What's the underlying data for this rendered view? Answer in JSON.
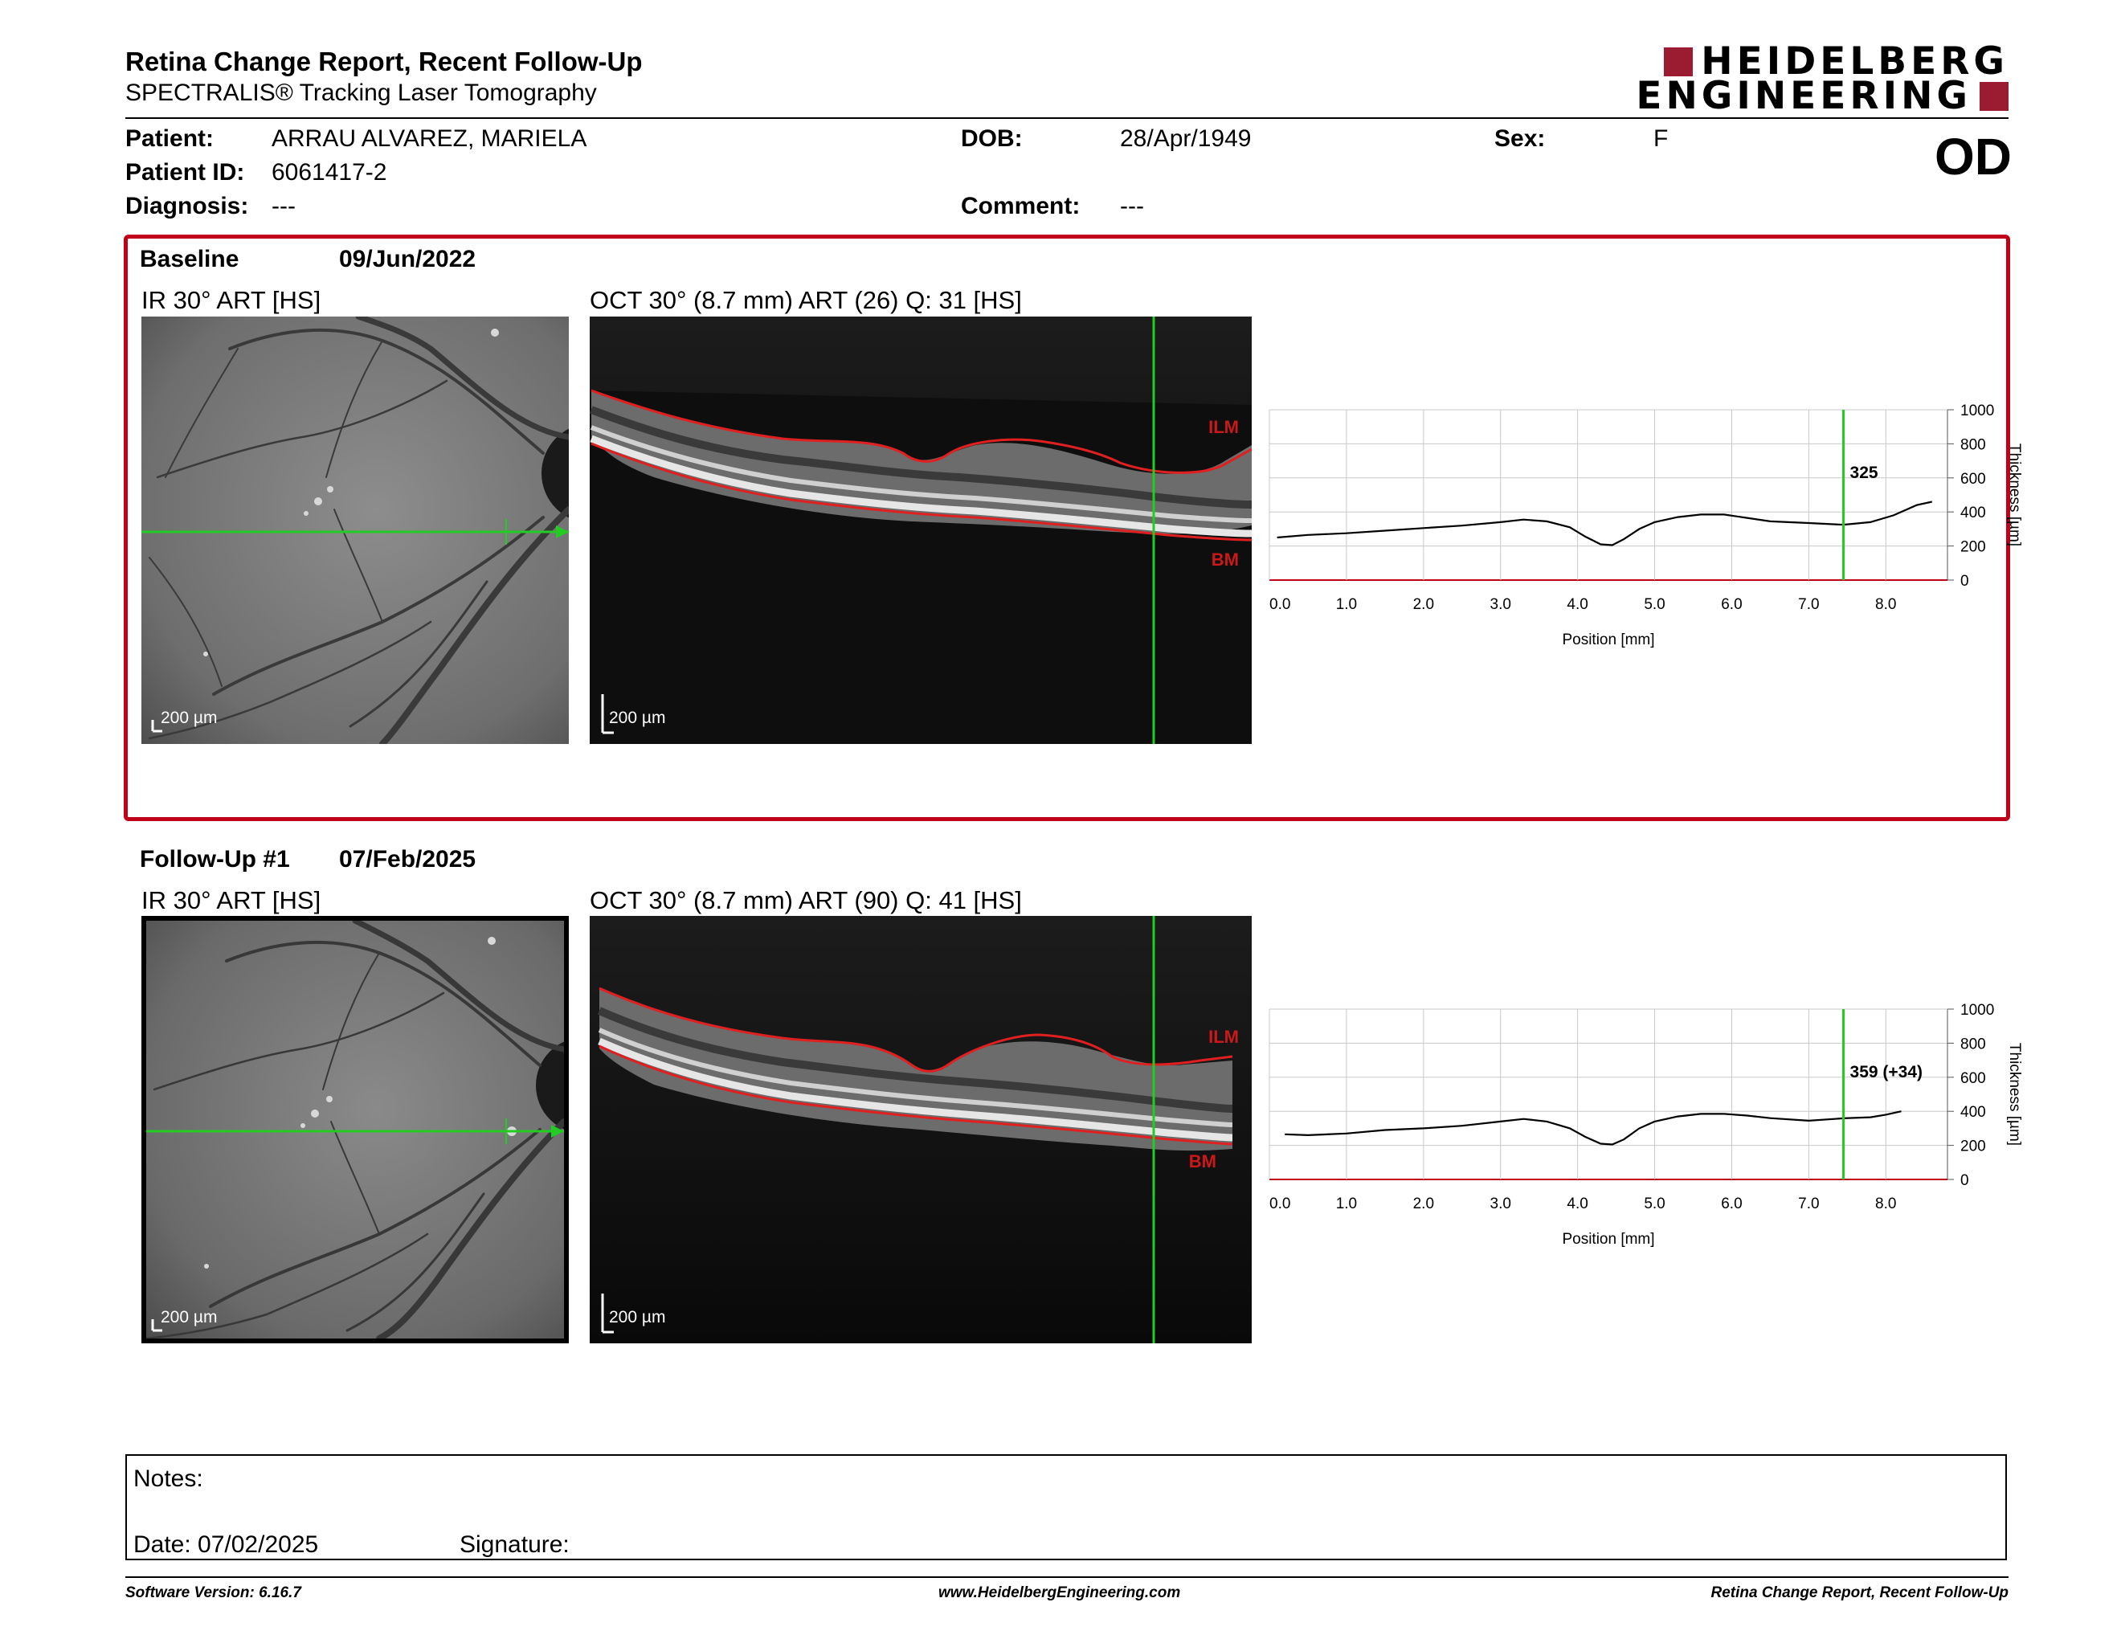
{
  "header": {
    "title": "Retina Change Report, Recent Follow-Up",
    "subtitle": "SPECTRALIS® Tracking Laser Tomography",
    "logo_line1": "HEIDELBERG",
    "logo_line2": "ENGINEERING",
    "eye": "OD"
  },
  "patient": {
    "patient_label": "Patient:",
    "patient_value": "ARRAU ALVAREZ, MARIELA",
    "dob_label": "DOB:",
    "dob_value": "28/Apr/1949",
    "sex_label": "Sex:",
    "sex_value": "F",
    "id_label": "Patient ID:",
    "id_value": "6061417-2",
    "diagnosis_label": "Diagnosis:",
    "diagnosis_value": "---",
    "comment_label": "Comment:",
    "comment_value": "---"
  },
  "sections": [
    {
      "label": "Baseline",
      "date": "09/Jun/2022",
      "ir_title": "IR 30° ART [HS]",
      "oct_title": "OCT 30° (8.7 mm) ART (26) Q: 31 [HS]",
      "ir_scale": "200 µm",
      "oct_scale": "200 µm",
      "ilm_label": "ILM",
      "bm_label": "BM",
      "readout": "325"
    },
    {
      "label": "Follow-Up #1",
      "date": "07/Feb/2025",
      "ir_title": "IR 30° ART [HS]",
      "oct_title": "OCT 30° (8.7 mm) ART (90) Q: 41 [HS]",
      "ir_scale": "200 µm",
      "oct_scale": "200 µm",
      "ilm_label": "ILM",
      "bm_label": "BM",
      "readout": "359 (+34)"
    }
  ],
  "chart_data": [
    {
      "type": "line",
      "xlabel": "Position [mm]",
      "ylabel": "Thickness [µm]",
      "xlim": [
        0,
        8.8
      ],
      "ylim": [
        0,
        1000
      ],
      "x_ticks": [
        "0.0",
        "1.0",
        "2.0",
        "3.0",
        "4.0",
        "5.0",
        "6.0",
        "7.0",
        "8.0"
      ],
      "y_ticks": [
        "0",
        "200",
        "400",
        "600",
        "800",
        "1000"
      ],
      "grid": true,
      "cursor_x": 7.45,
      "cursor_label": "325",
      "series": [
        {
          "x": [
            0.1,
            0.5,
            1.0,
            1.5,
            2.0,
            2.5,
            3.0,
            3.3,
            3.6,
            3.9,
            4.1,
            4.3,
            4.45,
            4.6,
            4.8,
            5.0,
            5.3,
            5.6,
            5.9,
            6.2,
            6.5,
            7.0,
            7.45,
            7.8,
            8.1,
            8.4,
            8.6
          ],
          "values": [
            250,
            265,
            275,
            290,
            305,
            320,
            340,
            355,
            345,
            310,
            255,
            210,
            205,
            240,
            300,
            340,
            370,
            385,
            385,
            365,
            345,
            335,
            325,
            340,
            380,
            440,
            460
          ]
        }
      ]
    },
    {
      "type": "line",
      "xlabel": "Position [mm]",
      "ylabel": "Thickness [µm]",
      "xlim": [
        0,
        8.8
      ],
      "ylim": [
        0,
        1000
      ],
      "x_ticks": [
        "0.0",
        "1.0",
        "2.0",
        "3.0",
        "4.0",
        "5.0",
        "6.0",
        "7.0",
        "8.0"
      ],
      "y_ticks": [
        "0",
        "200",
        "400",
        "600",
        "800",
        "1000"
      ],
      "grid": true,
      "cursor_x": 7.45,
      "cursor_label": "359 (+34)",
      "series": [
        {
          "x": [
            0.2,
            0.5,
            1.0,
            1.5,
            2.0,
            2.5,
            3.0,
            3.3,
            3.6,
            3.9,
            4.1,
            4.3,
            4.45,
            4.6,
            4.8,
            5.0,
            5.3,
            5.6,
            5.9,
            6.2,
            6.5,
            7.0,
            7.45,
            7.8,
            8.0,
            8.2
          ],
          "values": [
            265,
            260,
            270,
            290,
            300,
            315,
            340,
            355,
            340,
            300,
            250,
            210,
            205,
            235,
            300,
            340,
            370,
            385,
            385,
            375,
            360,
            345,
            359,
            365,
            380,
            400
          ]
        }
      ]
    }
  ],
  "notes": {
    "notes_label": "Notes:",
    "date_text": "Date: 07/02/2025",
    "signature_label": "Signature:"
  },
  "footer": {
    "version": "Software Version: 6.16.7",
    "url": "www.HeidelbergEngineering.com",
    "report_name": "Retina Change Report, Recent Follow-Up"
  },
  "colors": {
    "accent_red": "#c00018",
    "cursor_green": "#22cc22",
    "logo_red": "#9b1c31"
  }
}
